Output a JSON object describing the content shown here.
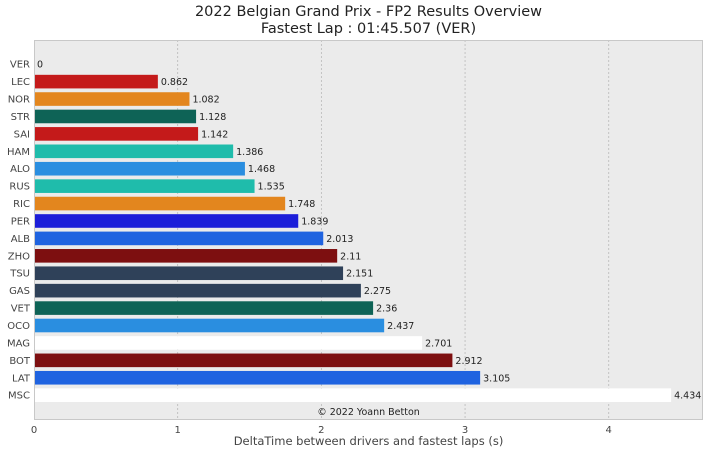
{
  "chart_data": {
    "type": "bar",
    "orientation": "horizontal",
    "title": "2022 Belgian Grand Prix - FP2 Results Overview",
    "subtitle": "Fastest Lap : 01:45.507 (VER)",
    "xlabel": "DeltaTime between drivers and fastest laps (s)",
    "ylabel": "",
    "xlim": [
      0,
      4.656
    ],
    "xticks": [
      "0",
      "1",
      "2",
      "3",
      "4"
    ],
    "grid": true,
    "background": "#ebebeb",
    "credit": "© 2022 Yoann Betton",
    "categories": [
      "VER",
      "LEC",
      "NOR",
      "STR",
      "SAI",
      "HAM",
      "ALO",
      "RUS",
      "RIC",
      "PER",
      "ALB",
      "ZHO",
      "TSU",
      "GAS",
      "VET",
      "OCO",
      "MAG",
      "BOT",
      "LAT",
      "MSC"
    ],
    "values": [
      0,
      0.862,
      1.082,
      1.128,
      1.142,
      1.386,
      1.468,
      1.535,
      1.748,
      1.839,
      2.013,
      2.11,
      2.151,
      2.275,
      2.36,
      2.437,
      2.701,
      2.912,
      3.105,
      4.434
    ],
    "labels": [
      "0",
      "0.862",
      "1.082",
      "1.128",
      "1.142",
      "1.386",
      "1.468",
      "1.535",
      "1.748",
      "1.839",
      "2.013",
      "2.11",
      "2.151",
      "2.275",
      "2.36",
      "2.437",
      "2.701",
      "2.912",
      "3.105",
      "4.434"
    ],
    "colors": [
      "#1e41ff",
      "#c41a1a",
      "#e3861e",
      "#0e6356",
      "#c41a1a",
      "#1fbcab",
      "#2a8ee0",
      "#1fbcab",
      "#e3861e",
      "#1c1ed9",
      "#1f63e0",
      "#7d0f10",
      "#2f4159",
      "#2f4159",
      "#0e6356",
      "#2a8ee0",
      "#ffffff",
      "#7d0f10",
      "#1f63e0",
      "#ffffff"
    ]
  }
}
